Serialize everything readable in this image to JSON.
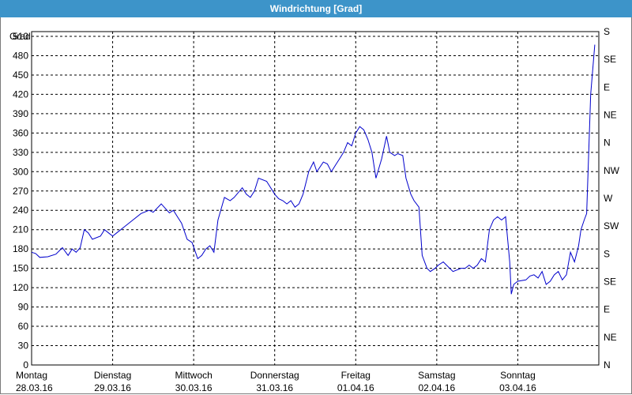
{
  "window": {
    "title": "Windrichtung [Grad]"
  },
  "colors": {
    "titlebar": "#3d94c9",
    "line": "#0000cc",
    "grid": "#000000"
  },
  "chart_data": {
    "type": "line",
    "title": "Windrichtung [Grad]",
    "ylabel": "Grad",
    "ylim": [
      0,
      510
    ],
    "yticks": [
      0,
      30,
      60,
      90,
      120,
      150,
      180,
      210,
      240,
      270,
      300,
      330,
      360,
      390,
      420,
      450,
      480,
      510
    ],
    "y2ticks": [
      {
        "value": 0,
        "label": "N"
      },
      {
        "value": 45,
        "label": "NE"
      },
      {
        "value": 90,
        "label": "E"
      },
      {
        "value": 135,
        "label": "SE"
      },
      {
        "value": 180,
        "label": "S"
      },
      {
        "value": 225,
        "label": "SW"
      },
      {
        "value": 270,
        "label": "W"
      },
      {
        "value": 315,
        "label": "NW"
      },
      {
        "value": 360,
        "label": "N"
      },
      {
        "value": 405,
        "label": "NE"
      },
      {
        "value": 450,
        "label": "E"
      },
      {
        "value": 495,
        "label": "SE"
      },
      {
        "value": 540,
        "label": "S"
      }
    ],
    "xlim": [
      0,
      7
    ],
    "xticks": [
      {
        "value": 0,
        "day": "Montag",
        "date": "28.03.16"
      },
      {
        "value": 1,
        "day": "Dienstag",
        "date": "29.03.16"
      },
      {
        "value": 2,
        "day": "Mittwoch",
        "date": "30.03.16"
      },
      {
        "value": 3,
        "day": "Donnerstag",
        "date": "31.03.16"
      },
      {
        "value": 4,
        "day": "Freitag",
        "date": "01.04.16"
      },
      {
        "value": 5,
        "day": "Samstag",
        "date": "02.04.16"
      },
      {
        "value": 6,
        "day": "Sonntag",
        "date": "03.04.16"
      }
    ],
    "grid": true,
    "series": [
      {
        "x": [
          0,
          0.05,
          0.1,
          0.2,
          0.3,
          0.38,
          0.45,
          0.5,
          0.55,
          0.6,
          0.65,
          0.7,
          0.75,
          0.85,
          0.9,
          0.95,
          1.0,
          1.05,
          1.15,
          1.25,
          1.35,
          1.45,
          1.5,
          1.6,
          1.7,
          1.75,
          1.8,
          1.85,
          1.92,
          1.98,
          2.05,
          2.1,
          2.15,
          2.2,
          2.25,
          2.3,
          2.38,
          2.45,
          2.5,
          2.6,
          2.65,
          2.7,
          2.75,
          2.8,
          2.9,
          3.0,
          3.05,
          3.1,
          3.15,
          3.2,
          3.25,
          3.3,
          3.35,
          3.42,
          3.48,
          3.52,
          3.6,
          3.65,
          3.7,
          3.75,
          3.8,
          3.85,
          3.9,
          3.95,
          4.0,
          4.05,
          4.1,
          4.15,
          4.2,
          4.25,
          4.32,
          4.38,
          4.42,
          4.48,
          4.52,
          4.58,
          4.62,
          4.68,
          4.72,
          4.78,
          4.82,
          4.88,
          4.92,
          4.98,
          5.02,
          5.08,
          5.12,
          5.2,
          5.3,
          5.35,
          5.4,
          5.45,
          5.5,
          5.55,
          5.6,
          5.65,
          5.7,
          5.75,
          5.8,
          5.85,
          5.9,
          5.92,
          5.95,
          6.0,
          6.1,
          6.15,
          6.2,
          6.25,
          6.3,
          6.35,
          6.4,
          6.45,
          6.5,
          6.55,
          6.6,
          6.65,
          6.7,
          6.75,
          6.78,
          6.82,
          6.85,
          6.9,
          6.95
        ],
        "values": [
          175,
          173,
          167,
          168,
          172,
          182,
          170,
          180,
          175,
          182,
          210,
          205,
          195,
          200,
          210,
          205,
          200,
          205,
          215,
          225,
          235,
          240,
          237,
          250,
          236,
          240,
          230,
          220,
          195,
          190,
          165,
          170,
          180,
          185,
          175,
          225,
          260,
          255,
          260,
          275,
          265,
          260,
          270,
          290,
          285,
          265,
          258,
          255,
          250,
          255,
          245,
          250,
          265,
          300,
          315,
          300,
          315,
          312,
          300,
          310,
          320,
          330,
          345,
          340,
          360,
          370,
          365,
          350,
          330,
          290,
          320,
          355,
          330,
          325,
          328,
          325,
          290,
          265,
          255,
          245,
          170,
          150,
          145,
          150,
          155,
          160,
          155,
          145,
          150,
          150,
          155,
          150,
          155,
          165,
          160,
          210,
          225,
          230,
          225,
          230,
          160,
          110,
          125,
          130,
          132,
          138,
          140,
          135,
          145,
          125,
          130,
          140,
          145,
          132,
          140,
          175,
          160,
          185,
          210,
          225,
          235,
          420,
          497
        ]
      }
    ]
  }
}
